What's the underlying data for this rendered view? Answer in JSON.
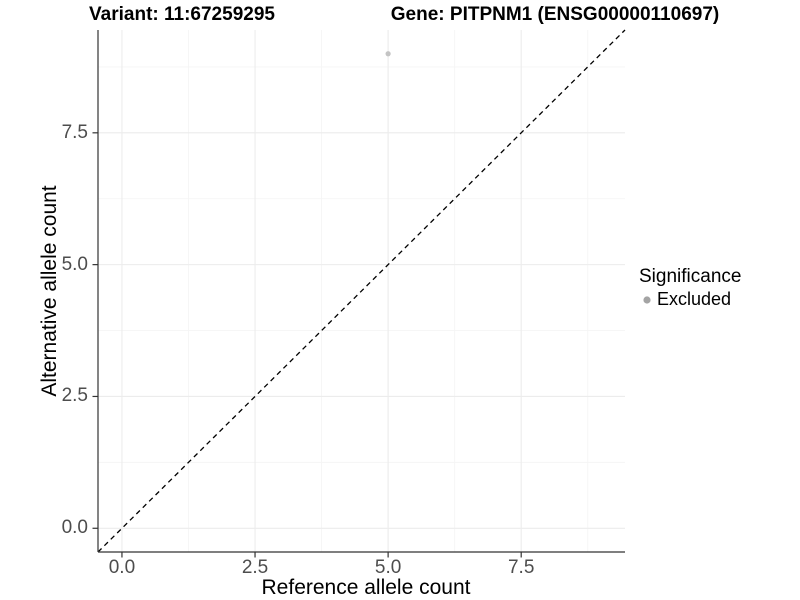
{
  "chart_data": {
    "type": "scatter",
    "titles": {
      "left": "Variant: 11:67259295",
      "right": "Gene: PITPNM1 (ENSG00000110697)"
    },
    "xlabel": "Reference allele count",
    "ylabel": "Alternative allele count",
    "xlim": [
      -0.45,
      9.45
    ],
    "ylim": [
      -0.45,
      9.45
    ],
    "x_ticks": {
      "values": [
        0,
        2.5,
        5,
        7.5
      ],
      "labels": [
        "0.0",
        "2.5",
        "5.0",
        "7.5"
      ]
    },
    "y_ticks": {
      "values": [
        0,
        2.5,
        5,
        7.5
      ],
      "labels": [
        "0.0",
        "2.5",
        "5.0",
        "7.5"
      ]
    },
    "minor_grid": [
      1.25,
      3.75,
      6.25,
      8.75
    ],
    "grid": {
      "major_color": "#ececec",
      "minor_color": "#f5f5f5",
      "background": "#ffffff"
    },
    "axis": {
      "line_color": "#333333",
      "tick_color": "#333333",
      "tick_label_color": "#4d4d4d"
    },
    "series": [
      {
        "name": "Excluded",
        "marker": "circle",
        "color": "#c4c4c4",
        "points": [
          {
            "x": 5,
            "y": 9
          }
        ]
      }
    ],
    "reference_line": {
      "kind": "identity y = x",
      "style": "dashed",
      "color": "#000000",
      "x1": -0.45,
      "y1": -0.45,
      "x2": 9.45,
      "y2": 9.45
    },
    "legend": {
      "title": "Significance",
      "position": "right",
      "entries": [
        {
          "label": "Excluded",
          "marker": "circle",
          "color": "#a4a4a4"
        }
      ]
    }
  }
}
